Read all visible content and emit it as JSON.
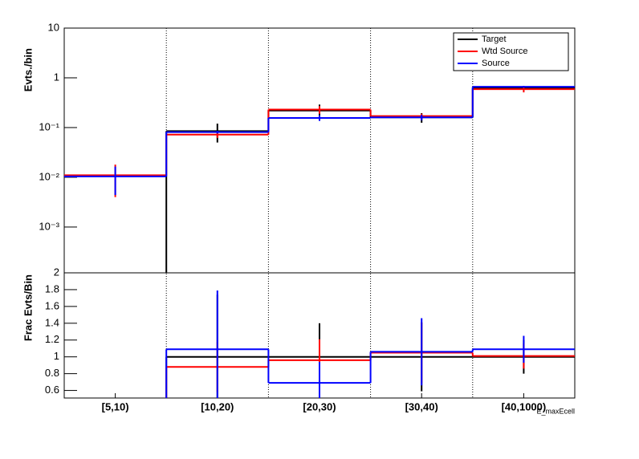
{
  "chart_data": [
    {
      "type": "step",
      "ylabel": "Evts./bin",
      "log_y": true,
      "ylim": [
        0.00012,
        10
      ],
      "yticks": [
        {
          "value": 0.001,
          "label": "10⁻³"
        },
        {
          "value": 0.01,
          "label": "10⁻²"
        },
        {
          "value": 0.1,
          "label": "10⁻¹"
        },
        1,
        10
      ],
      "legend": "top-right",
      "series": [
        {
          "name": "Target",
          "color": "#000000",
          "values": [
            null,
            0.085,
            0.22,
            0.16,
            0.62
          ],
          "errors": [
            null,
            0.035,
            0.07,
            0.035,
            0.05
          ]
        },
        {
          "name": "Wtd Source",
          "color": "#ff0000",
          "values": [
            0.011,
            0.072,
            0.23,
            0.17,
            0.59
          ],
          "errors": [
            0.007,
            0.01,
            0.04,
            0.02,
            0.08
          ]
        },
        {
          "name": "Source",
          "color": "#0000ff",
          "values": [
            0.0104,
            0.081,
            0.156,
            0.16,
            0.66
          ],
          "errors": [
            0.006,
            0.005,
            0.02,
            0.02,
            0.03
          ]
        }
      ]
    },
    {
      "type": "step",
      "ylabel": "Frac Evts/Bin",
      "log_y": false,
      "xlabel": "E_maxEcell",
      "categories": [
        "[5,10)",
        "[10,20)",
        "[20,30)",
        "[30,40)",
        "[40,1000)"
      ],
      "ylim": [
        0.51,
        2
      ],
      "yticks": [
        0.6,
        0.8,
        1,
        1.2,
        1.4,
        1.6,
        1.8,
        2
      ],
      "series": [
        {
          "color": "#000000",
          "values": [
            null,
            1,
            1,
            1,
            1
          ],
          "errors": [
            null,
            0.74,
            0.4,
            0.41,
            0.2
          ]
        },
        {
          "color": "#ff0000",
          "values": [
            0,
            0.88,
            0.96,
            1.05,
            1.01
          ],
          "errors": [
            null,
            0.3,
            0.25,
            0.36,
            0.15
          ]
        },
        {
          "color": "#0000ff",
          "values": [
            0,
            1.09,
            0.69,
            1.06,
            1.09
          ],
          "errors": [
            null,
            0.7,
            0.25,
            0.4,
            0.16
          ]
        }
      ]
    }
  ]
}
